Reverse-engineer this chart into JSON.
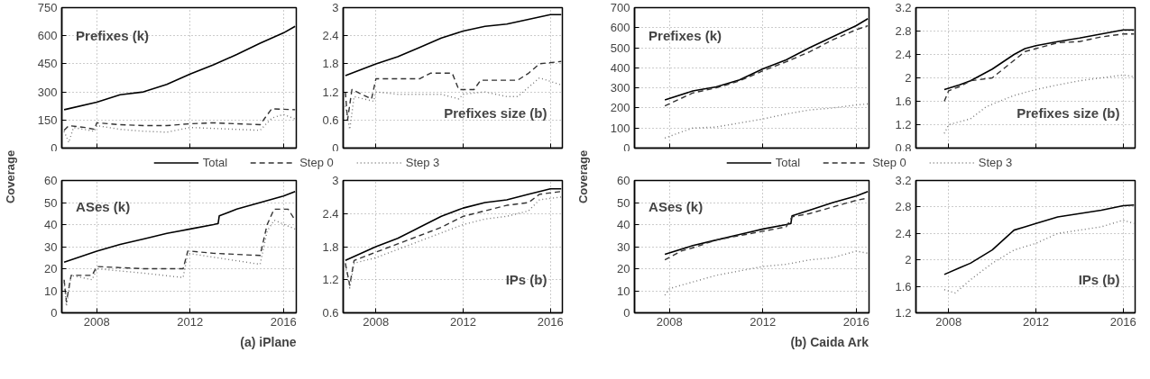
{
  "chart_data": [
    {
      "type": "line",
      "annotations": [
        "Prefixes (k)"
      ],
      "ylabel": "Coverage",
      "xlim": [
        2006.5,
        2016.55
      ],
      "xticks": [
        2008,
        2012,
        2016
      ],
      "ylim": [
        0,
        750
      ],
      "yticks": [
        0,
        150,
        300,
        450,
        600,
        750
      ],
      "tick_labels": "y",
      "grid": true,
      "legend": "bottom",
      "series": [
        {
          "name": "Total",
          "color": "#000000",
          "line_style": "solid",
          "x": [
            2006.6,
            2008,
            2009,
            2010,
            2011,
            2012,
            2013,
            2014,
            2015,
            2016,
            2016.5
          ],
          "values": [
            205,
            245,
            285,
            300,
            340,
            395,
            445,
            500,
            560,
            615,
            650
          ]
        },
        {
          "name": "Step 0",
          "color": "#333333",
          "line_style": "dashed",
          "x": [
            2006.6,
            2006.8,
            2007.5,
            2007.9,
            2008,
            2009,
            2010,
            2011,
            2012,
            2013,
            2014,
            2015,
            2015.2,
            2015.5,
            2016.5
          ],
          "values": [
            95,
            120,
            110,
            100,
            135,
            125,
            120,
            120,
            130,
            135,
            130,
            125,
            160,
            210,
            205
          ]
        },
        {
          "name": "Step 3",
          "color": "#777777",
          "line_style": "dotted",
          "x": [
            2006.6,
            2006.8,
            2007,
            2007.9,
            2008,
            2009,
            2010,
            2011,
            2012,
            2013,
            2014,
            2015,
            2015.5,
            2016,
            2016.5
          ],
          "values": [
            90,
            30,
            110,
            90,
            120,
            100,
            90,
            85,
            110,
            105,
            100,
            95,
            160,
            180,
            155
          ]
        }
      ]
    },
    {
      "type": "line",
      "annotations": [
        "Prefixes size (b)"
      ],
      "xlim": [
        2006.5,
        2016.55
      ],
      "xticks": [
        2008,
        2012,
        2016
      ],
      "ylim": [
        0,
        3
      ],
      "yticks": [
        0,
        0.6,
        1.2,
        1.8,
        2.4,
        3
      ],
      "tick_labels": "y",
      "grid": true,
      "legend": "bottom",
      "series": [
        {
          "name": "Total",
          "color": "#000000",
          "line_style": "solid",
          "x": [
            2006.6,
            2008,
            2009,
            2010,
            2011,
            2012,
            2013,
            2014,
            2015,
            2016,
            2016.5
          ],
          "values": [
            1.55,
            1.8,
            1.95,
            2.15,
            2.35,
            2.5,
            2.6,
            2.65,
            2.75,
            2.85,
            2.85
          ]
        },
        {
          "name": "Step 0",
          "color": "#333333",
          "line_style": "dashed",
          "x": [
            2006.6,
            2006.7,
            2006.9,
            2007.8,
            2008,
            2009,
            2010,
            2010.5,
            2011.5,
            2011.8,
            2012.5,
            2012.8,
            2014.5,
            2015,
            2015.5,
            2016.5
          ],
          "values": [
            1.2,
            0.6,
            1.25,
            1.05,
            1.48,
            1.48,
            1.48,
            1.6,
            1.6,
            1.25,
            1.25,
            1.45,
            1.45,
            1.6,
            1.8,
            1.85
          ]
        },
        {
          "name": "Step 3",
          "color": "#777777",
          "line_style": "dotted",
          "x": [
            2006.6,
            2006.8,
            2007,
            2007.9,
            2008,
            2009,
            2010,
            2011,
            2011.8,
            2012,
            2013,
            2014,
            2014.5,
            2015,
            2015.5,
            2016.5
          ],
          "values": [
            0.9,
            0.4,
            1.1,
            1.0,
            1.2,
            1.15,
            1.15,
            1.15,
            1.05,
            1.15,
            1.2,
            1.1,
            1.1,
            1.3,
            1.5,
            1.35
          ]
        }
      ]
    },
    {
      "type": "line",
      "annotations": [
        "ASes (k)",
        "(a) iPlane"
      ],
      "xlim": [
        2006.5,
        2016.55
      ],
      "xticks": [
        2008,
        2012,
        2016
      ],
      "ylim": [
        0,
        60
      ],
      "yticks": [
        0,
        10,
        20,
        30,
        40,
        50,
        60
      ],
      "grid": true,
      "legend": "top",
      "series": [
        {
          "name": "Total",
          "color": "#000000",
          "line_style": "solid",
          "x": [
            2006.6,
            2008,
            2009,
            2010,
            2011,
            2012,
            2013,
            2013.2,
            2013.25,
            2014,
            2015,
            2016,
            2016.5
          ],
          "values": [
            23,
            28,
            31,
            33.5,
            36,
            38,
            40,
            40.5,
            44,
            47,
            50,
            53,
            55
          ]
        },
        {
          "name": "Step 0",
          "color": "#333333",
          "line_style": "dashed",
          "x": [
            2006.6,
            2006.7,
            2006.9,
            2007.8,
            2008,
            2010,
            2011.7,
            2011.9,
            2012,
            2013,
            2015,
            2015.3,
            2015.6,
            2016.2,
            2016.5
          ],
          "values": [
            15,
            5,
            17,
            17,
            21,
            20,
            20,
            28,
            28,
            27,
            26,
            40,
            47,
            47,
            42
          ]
        },
        {
          "name": "Step 3",
          "color": "#777777",
          "line_style": "dotted",
          "x": [
            2006.6,
            2006.7,
            2006.9,
            2007.8,
            2008,
            2010,
            2011.7,
            2011.9,
            2015,
            2015.3,
            2015.6,
            2016.5
          ],
          "values": [
            14,
            3,
            17,
            15,
            20,
            18,
            16,
            27,
            22,
            37,
            42,
            38
          ]
        }
      ]
    },
    {
      "type": "line",
      "annotations": [
        "IPs (b)"
      ],
      "xlim": [
        2006.5,
        2016.55
      ],
      "xticks": [
        2008,
        2012,
        2016
      ],
      "ylim": [
        0.6,
        3
      ],
      "yticks": [
        0.6,
        1.2,
        1.8,
        2.4,
        3
      ],
      "grid": true,
      "legend": "top",
      "series": [
        {
          "name": "Total",
          "color": "#000000",
          "line_style": "solid",
          "x": [
            2006.6,
            2008,
            2009,
            2010,
            2011,
            2012,
            2013,
            2014,
            2015,
            2016,
            2016.5
          ],
          "values": [
            1.55,
            1.8,
            1.95,
            2.15,
            2.35,
            2.5,
            2.6,
            2.65,
            2.75,
            2.85,
            2.85
          ]
        },
        {
          "name": "Step 0",
          "color": "#333333",
          "line_style": "dashed",
          "x": [
            2006.6,
            2006.8,
            2007,
            2008,
            2009,
            2010,
            2011,
            2012,
            2013,
            2014,
            2015,
            2015.5,
            2016.5
          ],
          "values": [
            1.5,
            1.1,
            1.55,
            1.7,
            1.85,
            2.0,
            2.15,
            2.35,
            2.45,
            2.55,
            2.6,
            2.75,
            2.8
          ]
        },
        {
          "name": "Step 3",
          "color": "#777777",
          "line_style": "dotted",
          "x": [
            2006.6,
            2006.8,
            2007,
            2008,
            2009,
            2010,
            2011,
            2012,
            2013,
            2014,
            2015,
            2015.5,
            2016.5
          ],
          "values": [
            1.45,
            1.05,
            1.5,
            1.6,
            1.75,
            1.9,
            2.05,
            2.2,
            2.3,
            2.35,
            2.45,
            2.65,
            2.7
          ]
        }
      ]
    },
    {
      "type": "line",
      "annotations": [
        "Prefixes (k)"
      ],
      "ylabel": "Coverage",
      "xlim": [
        2006.5,
        2016.55
      ],
      "xticks": [
        2008,
        2012,
        2016
      ],
      "ylim": [
        0,
        700
      ],
      "yticks": [
        0,
        100,
        200,
        300,
        400,
        500,
        600,
        700
      ],
      "tick_labels": "y",
      "grid": true,
      "legend": "bottom",
      "series": [
        {
          "name": "Total",
          "color": "#000000",
          "line_style": "solid",
          "x": [
            2007.8,
            2009,
            2010,
            2011,
            2012,
            2013,
            2014,
            2015,
            2016,
            2016.5
          ],
          "values": [
            240,
            285,
            305,
            340,
            395,
            440,
            500,
            555,
            610,
            645
          ]
        },
        {
          "name": "Step 0",
          "color": "#333333",
          "line_style": "dashed",
          "x": [
            2007.8,
            2009,
            2010,
            2011,
            2012,
            2013,
            2014,
            2015,
            2016,
            2016.5
          ],
          "values": [
            210,
            275,
            300,
            335,
            385,
            430,
            480,
            540,
            590,
            610
          ]
        },
        {
          "name": "Step 3",
          "color": "#777777",
          "line_style": "dotted",
          "x": [
            2007.8,
            2008.5,
            2009,
            2010,
            2011,
            2012,
            2013,
            2014,
            2015,
            2016,
            2016.5
          ],
          "values": [
            50,
            80,
            100,
            105,
            125,
            145,
            170,
            190,
            200,
            215,
            220
          ]
        }
      ]
    },
    {
      "type": "line",
      "annotations": [
        "Prefixes size (b)"
      ],
      "xlim": [
        2006.5,
        2016.55
      ],
      "xticks": [
        2008,
        2012,
        2016
      ],
      "ylim": [
        0.8,
        3.2
      ],
      "yticks": [
        0.8,
        1.2,
        1.6,
        2,
        2.4,
        2.8,
        3.2
      ],
      "tick_labels": "y",
      "grid": true,
      "legend": "bottom",
      "series": [
        {
          "name": "Total",
          "color": "#000000",
          "line_style": "solid",
          "x": [
            2007.8,
            2008.5,
            2009,
            2010,
            2011,
            2011.5,
            2012,
            2013,
            2014,
            2015,
            2016,
            2016.5
          ],
          "values": [
            1.8,
            1.88,
            1.95,
            2.15,
            2.4,
            2.5,
            2.55,
            2.62,
            2.68,
            2.75,
            2.82,
            2.82
          ]
        },
        {
          "name": "Step 0",
          "color": "#333333",
          "line_style": "dashed",
          "x": [
            2007.8,
            2008,
            2008.5,
            2009,
            2010,
            2011,
            2011.5,
            2012,
            2013,
            2014,
            2015,
            2016,
            2016.5
          ],
          "values": [
            1.6,
            1.78,
            1.85,
            1.95,
            2.0,
            2.3,
            2.45,
            2.5,
            2.6,
            2.62,
            2.7,
            2.75,
            2.75
          ]
        },
        {
          "name": "Step 3",
          "color": "#777777",
          "line_style": "dotted",
          "x": [
            2007.8,
            2008,
            2009,
            2009.7,
            2010,
            2011,
            2012,
            2013,
            2014,
            2015,
            2016,
            2016.5
          ],
          "values": [
            1.05,
            1.2,
            1.3,
            1.5,
            1.55,
            1.7,
            1.8,
            1.88,
            1.95,
            2.0,
            2.05,
            2.02
          ]
        }
      ]
    },
    {
      "type": "line",
      "annotations": [
        "ASes (k)",
        "(b) Caida Ark"
      ],
      "xlim": [
        2006.5,
        2016.55
      ],
      "xticks": [
        2008,
        2012,
        2016
      ],
      "ylim": [
        0,
        60
      ],
      "yticks": [
        0,
        10,
        20,
        30,
        40,
        50,
        60
      ],
      "grid": true,
      "legend": "top",
      "series": [
        {
          "name": "Total",
          "color": "#000000",
          "line_style": "solid",
          "x": [
            2007.8,
            2009,
            2010,
            2011,
            2012,
            2013,
            2013.2,
            2013.25,
            2014,
            2015,
            2016,
            2016.5
          ],
          "values": [
            26.5,
            30.5,
            33,
            35.5,
            38,
            40,
            40.5,
            44,
            46.5,
            50,
            53,
            55
          ]
        },
        {
          "name": "Step 0",
          "color": "#333333",
          "line_style": "dashed",
          "x": [
            2007.8,
            2008.5,
            2009,
            2010,
            2011,
            2012,
            2013,
            2013.25,
            2014,
            2015,
            2016,
            2016.5
          ],
          "values": [
            24,
            28,
            29.5,
            33,
            35,
            37,
            39,
            43.5,
            45,
            48,
            51,
            52
          ]
        },
        {
          "name": "Step 3",
          "color": "#777777",
          "line_style": "dotted",
          "x": [
            2007.8,
            2008,
            2009,
            2010,
            2011,
            2012,
            2013,
            2014,
            2015,
            2016,
            2016.5
          ],
          "values": [
            8,
            11,
            14,
            17,
            19,
            21,
            22,
            24,
            25,
            28,
            27
          ]
        }
      ]
    },
    {
      "type": "line",
      "annotations": [
        "IPs (b)"
      ],
      "xlim": [
        2006.5,
        2016.55
      ],
      "xticks": [
        2008,
        2012,
        2016
      ],
      "ylim": [
        1.2,
        3.2
      ],
      "yticks": [
        1.2,
        1.6,
        2,
        2.4,
        2.8,
        3.2
      ],
      "grid": true,
      "legend": "top",
      "series": [
        {
          "name": "Total",
          "color": "#000000",
          "line_style": "solid",
          "x": [
            2007.8,
            2008.5,
            2009,
            2010,
            2011,
            2011.5,
            2012,
            2013,
            2014,
            2015,
            2016,
            2016.5
          ],
          "values": [
            1.78,
            1.88,
            1.95,
            2.15,
            2.45,
            2.5,
            2.55,
            2.65,
            2.7,
            2.75,
            2.82,
            2.83
          ]
        },
        {
          "name": "Step 3",
          "color": "#777777",
          "line_style": "dotted",
          "x": [
            2007.8,
            2008.3,
            2009,
            2010,
            2011,
            2012,
            2013,
            2014,
            2015,
            2016,
            2016.5
          ],
          "values": [
            1.55,
            1.5,
            1.7,
            1.95,
            2.15,
            2.25,
            2.4,
            2.45,
            2.5,
            2.6,
            2.55
          ]
        }
      ]
    }
  ]
}
